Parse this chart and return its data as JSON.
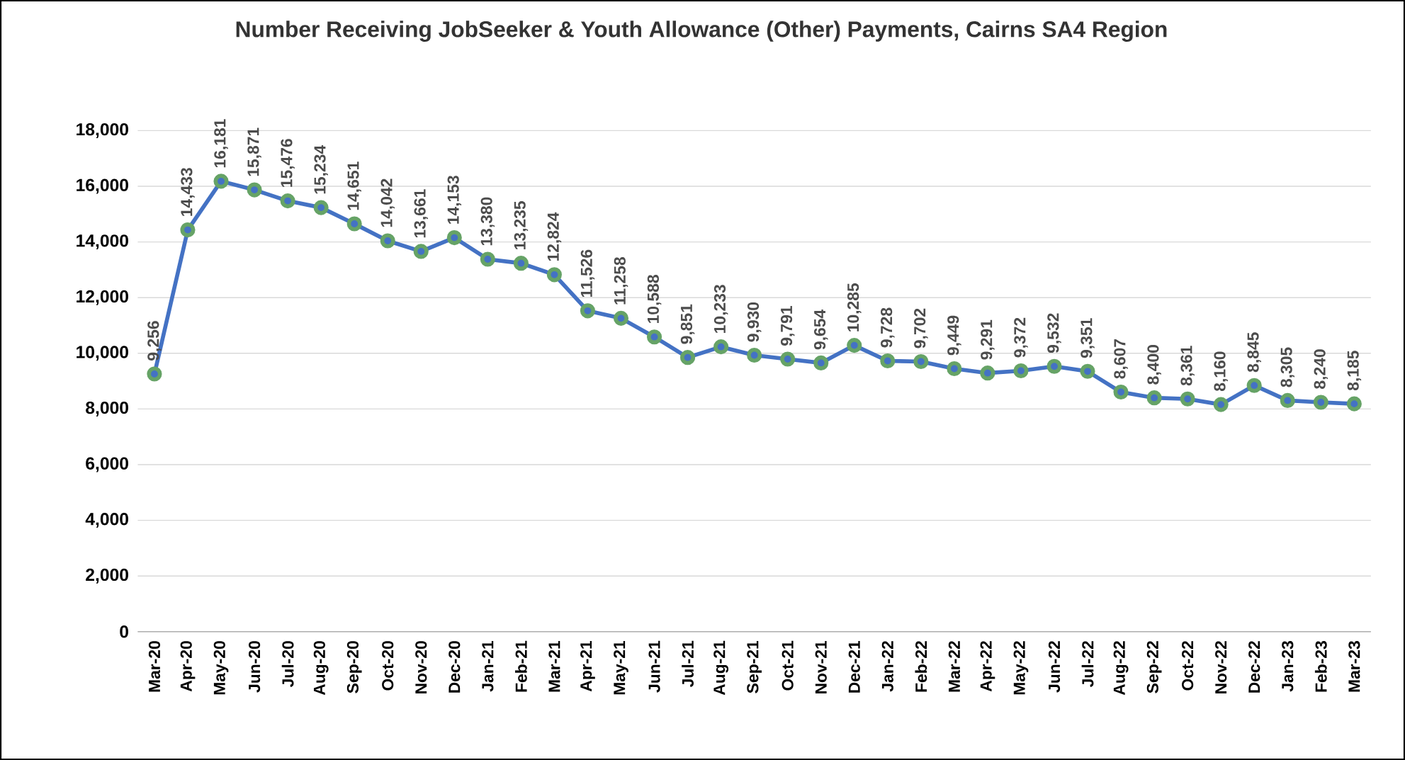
{
  "chart_data": {
    "type": "line",
    "title": "Number Receiving JobSeeker & Youth Allowance (Other) Payments, Cairns SA4 Region",
    "categories": [
      "Mar-20",
      "Apr-20",
      "May-20",
      "Jun-20",
      "Jul-20",
      "Aug-20",
      "Sep-20",
      "Oct-20",
      "Nov-20",
      "Dec-20",
      "Jan-21",
      "Feb-21",
      "Mar-21",
      "Apr-21",
      "May-21",
      "Jun-21",
      "Jul-21",
      "Aug-21",
      "Sep-21",
      "Oct-21",
      "Nov-21",
      "Dec-21",
      "Jan-22",
      "Feb-22",
      "Mar-22",
      "Apr-22",
      "May-22",
      "Jun-22",
      "Jul-22",
      "Aug-22",
      "Sep-22",
      "Oct-22",
      "Nov-22",
      "Dec-22",
      "Jan-23",
      "Feb-23",
      "Mar-23"
    ],
    "values": [
      9256,
      14433,
      16181,
      15871,
      15476,
      15234,
      14651,
      14042,
      13661,
      14153,
      13380,
      13235,
      12824,
      11526,
      11258,
      10588,
      9851,
      10233,
      9930,
      9791,
      9654,
      10285,
      9728,
      9702,
      9449,
      9291,
      9372,
      9532,
      9351,
      8607,
      8400,
      8361,
      8160,
      8845,
      8305,
      8240,
      8185
    ],
    "value_labels": [
      "9,256",
      "14,433",
      "16,181",
      "15,871",
      "15,476",
      "15,234",
      "14,651",
      "14,042",
      "13,661",
      "14,153",
      "13,380",
      "13,235",
      "12,824",
      "11,526",
      "11,258",
      "10,588",
      "9,851",
      "10,233",
      "9,930",
      "9,791",
      "9,654",
      "10,285",
      "9,728",
      "9,702",
      "9,449",
      "9,291",
      "9,372",
      "9,532",
      "9,351",
      "8,607",
      "8,400",
      "8,361",
      "8,160",
      "8,845",
      "8,305",
      "8,240",
      "8,185"
    ],
    "color": "#4472c4",
    "marker": "circle",
    "line_style": "solid",
    "grid": "y",
    "ylim": [
      0,
      18000
    ],
    "yticks": [
      {
        "value": 0,
        "label": "0"
      },
      {
        "value": 2000,
        "label": "2,000"
      },
      {
        "value": 4000,
        "label": "4,000"
      },
      {
        "value": 6000,
        "label": "6,000"
      },
      {
        "value": 8000,
        "label": "8,000"
      },
      {
        "value": 10000,
        "label": "10,000"
      },
      {
        "value": 12000,
        "label": "12,000"
      },
      {
        "value": 14000,
        "label": "14,000"
      },
      {
        "value": 16000,
        "label": "16,000"
      },
      {
        "value": 18000,
        "label": "18,000"
      }
    ]
  }
}
